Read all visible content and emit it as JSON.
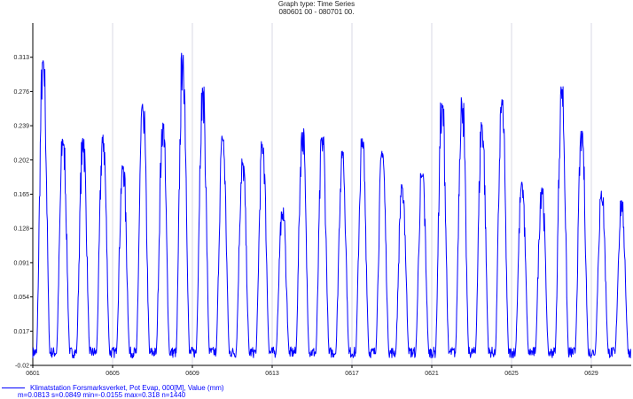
{
  "header": {
    "graph_type": "Graph type: Time Series",
    "period": "080601 00 - 080701 00."
  },
  "legend": {
    "series_label": "Klimatstation Forsmarksverket, Pot Evap, 000[M], Value (mm)",
    "stats": "m=0.0813 s=0.0849 min=-0.0155 max=0.318 n=1440"
  },
  "colors": {
    "series": "#0000ff",
    "grid": "#c8c8dc",
    "axis": "#000000"
  },
  "chart_data": {
    "type": "line",
    "title": "Graph type: Time Series",
    "subtitle": "080601 00 - 080701 00.",
    "xlabel": "",
    "ylabel": "",
    "x_unit": "day of June 2008 (fractional)",
    "xlim": [
      1,
      31
    ],
    "ylim": [
      -0.02,
      0.35
    ],
    "y_ticks": [
      -0.02,
      0.017,
      0.054,
      0.091,
      0.128,
      0.165,
      0.202,
      0.239,
      0.276,
      0.313
    ],
    "x_tick_labels": [
      {
        "x": 1,
        "label": "0601"
      },
      {
        "x": 5,
        "label": "0605"
      },
      {
        "x": 9,
        "label": "0609"
      },
      {
        "x": 13,
        "label": "0613"
      },
      {
        "x": 17,
        "label": "0617"
      },
      {
        "x": 21,
        "label": "0621"
      },
      {
        "x": 25,
        "label": "0625"
      },
      {
        "x": 29,
        "label": "0629"
      }
    ],
    "grid": "vertical",
    "legend_position": "bottom-left",
    "series": [
      {
        "name": "Klimatstation Forsmarksverket, Pot Evap, 000[M], Value (mm)",
        "color": "#0000ff",
        "daily_peaks": [
          0.315,
          0.227,
          0.228,
          0.23,
          0.2,
          0.265,
          0.242,
          0.318,
          0.283,
          0.23,
          0.204,
          0.225,
          0.155,
          0.236,
          0.229,
          0.213,
          0.225,
          0.212,
          0.18,
          0.192,
          0.267,
          0.273,
          0.245,
          0.268,
          0.179,
          0.175,
          0.282,
          0.235,
          0.17,
          0.16
        ],
        "min": -0.0155,
        "max": 0.318,
        "mean": 0.0813,
        "std": 0.0849,
        "n": 1440
      }
    ]
  }
}
